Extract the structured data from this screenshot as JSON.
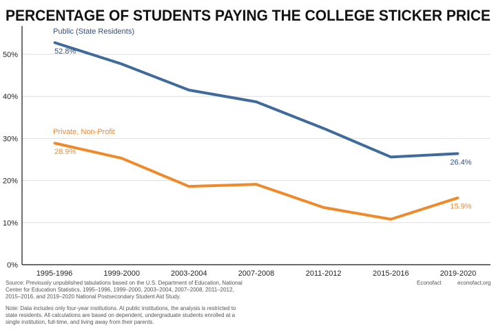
{
  "chart_data": {
    "type": "line",
    "title": "PERCENTAGE OF STUDENTS PAYING THE COLLEGE STICKER PRICE",
    "xlabel": "",
    "ylabel": "",
    "categories": [
      "1995-1996",
      "1999-2000",
      "2003-2004",
      "2007-2008",
      "2011-2012",
      "2015-2016",
      "2019-2020"
    ],
    "yticks": [
      "0%",
      "10%",
      "20%",
      "30%",
      "40%",
      "50%"
    ],
    "ylim": [
      0,
      55
    ],
    "grid": true,
    "series": [
      {
        "name": "Public (State Residents)",
        "color": "#3f6b9c",
        "label_color": "#2f4f86",
        "values": [
          52.8,
          47.7,
          41.5,
          38.7,
          32.4,
          25.6,
          26.4
        ],
        "start_label": "52.8%",
        "end_label": "26.4%"
      },
      {
        "name": "Private, Non-Profit",
        "color": "#f0892a",
        "label_color": "#ef8a33",
        "values": [
          28.9,
          25.3,
          18.6,
          19.1,
          13.6,
          10.8,
          15.9
        ],
        "start_label": "28.9%",
        "end_label": "15.9%"
      }
    ]
  },
  "footer": {
    "source": [
      "Source: Previously unpublished tabulations based on the U.S. Department of Education, National",
      "Center for Education Statistics, 1995–1996, 1999–2000, 2003–2004, 2007–2008, 2011–2012,",
      "2015–2016, and 2019–2020 National Postsecondary Student Aid Study."
    ],
    "note": [
      "Note: Data includes only four-year institutions. At public institutions, the analysis is restricted to",
      "state residents. All calculations are based on dependent, undergraduate students enrolled at a",
      "single institution, full-time, and living away from their parents."
    ],
    "brand": "Econofact",
    "url": "econofact.org"
  }
}
